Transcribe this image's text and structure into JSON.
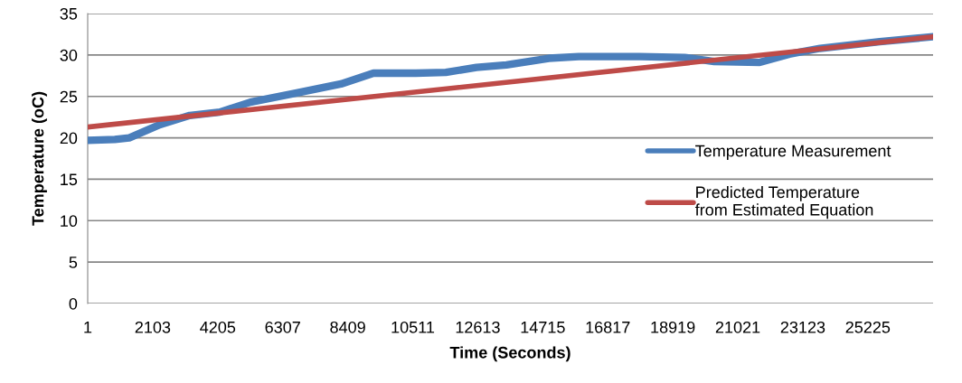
{
  "chart_data": {
    "type": "line",
    "xlabel": "Time (Seconds)",
    "ylabel": "Temperature (oC)",
    "xlim": [
      1,
      27335
    ],
    "xticks": [
      1,
      2103,
      4205,
      6307,
      8409,
      10511,
      12613,
      14715,
      16817,
      18919,
      21021,
      23123,
      25225
    ],
    "ylim": [
      0,
      35
    ],
    "yticks": [
      0,
      5,
      10,
      15,
      20,
      25,
      30,
      35
    ],
    "grid": "y",
    "legend": "right",
    "series": [
      {
        "name": "Temperature Measurement",
        "color": "#4a7ebb",
        "x": [
          1,
          877,
          1345,
          2340,
          3300,
          4270,
          5260,
          6725,
          8190,
          9240,
          10610,
          11580,
          12570,
          13540,
          14910,
          15880,
          17840,
          19300,
          20260,
          21730,
          22690,
          23680,
          25610,
          27335
        ],
        "values": [
          19.7,
          19.8,
          20.0,
          21.6,
          22.7,
          23.1,
          24.3,
          25.4,
          26.5,
          27.8,
          27.8,
          27.9,
          28.5,
          28.8,
          29.6,
          29.8,
          29.8,
          29.7,
          29.2,
          29.1,
          30.1,
          30.8,
          31.6,
          32.2
        ]
      },
      {
        "name": "Predicted Temperature\nfrom Estimated Equation",
        "color": "#be4b48",
        "x": [
          1,
          27335
        ],
        "values": [
          21.3,
          32.2
        ]
      }
    ]
  }
}
